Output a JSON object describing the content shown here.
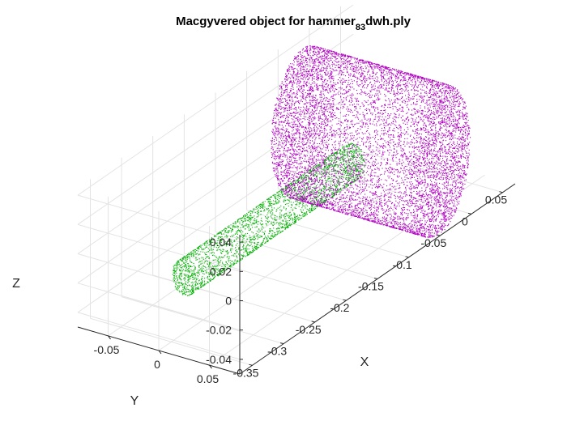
{
  "chart_data": {
    "type": "scatter",
    "plot_kind": "3d point cloud",
    "title": {
      "prefix": "Macgyvered object for hammer",
      "subscript": "83",
      "suffix": "dwh.ply"
    },
    "axes": {
      "x": {
        "label": "X",
        "ticks": [
          "-0.35",
          "-0.3",
          "-0.25",
          "-0.2",
          "-0.15",
          "-0.1",
          "-0.05",
          "0",
          "0.05"
        ],
        "range": [
          -0.37,
          0.07
        ]
      },
      "y": {
        "label": "Y",
        "ticks": [
          "0.05",
          "0",
          "-0.05"
        ],
        "range": [
          -0.08,
          0.08
        ]
      },
      "z": {
        "label": "Z",
        "ticks": [
          "0.04",
          "0.02",
          "0",
          "-0.02",
          "-0.04"
        ],
        "range": [
          -0.05,
          0.045
        ]
      }
    },
    "grid": true,
    "series": [
      {
        "shape": "cylinder",
        "part": "handle",
        "color": "#00b000",
        "axis_from": {
          "x": -0.33,
          "y": 0.0,
          "z": -0.012
        },
        "axis_to": {
          "x": -0.06,
          "y": 0.0,
          "z": -0.012
        },
        "radius": 0.012
      },
      {
        "shape": "cylinder",
        "part": "head",
        "color": "#b000c0",
        "axis_from": {
          "x": -0.02,
          "y": 0.06,
          "z": -0.012
        },
        "axis_to": {
          "x": -0.02,
          "y": -0.075,
          "z": -0.012
        },
        "radius": 0.05
      }
    ]
  }
}
